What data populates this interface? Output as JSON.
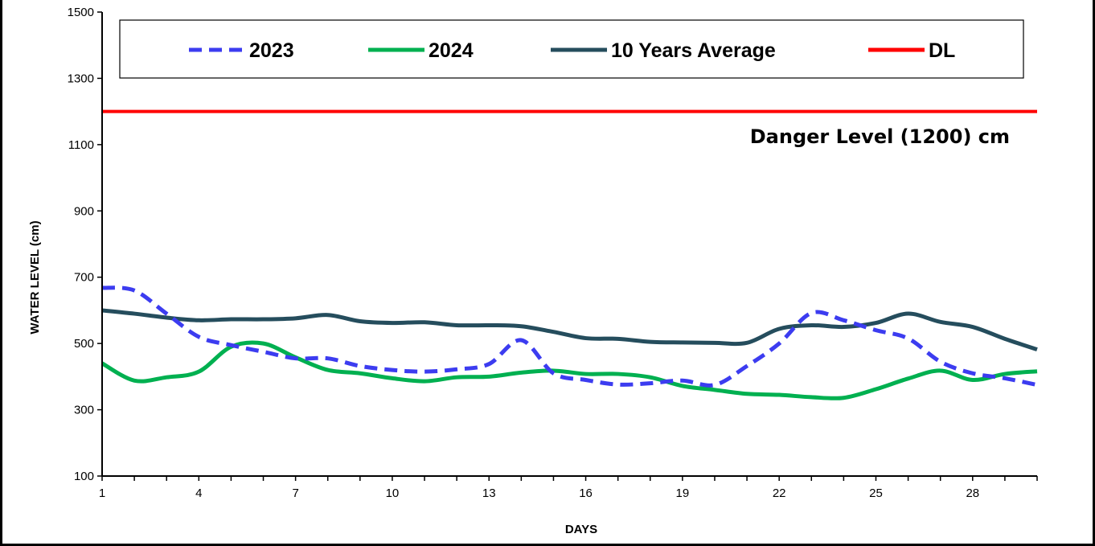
{
  "chart_data": {
    "type": "line",
    "xlabel": "DAYS",
    "ylabel": "WATER LEVEL (cm)",
    "xlim": [
      1,
      30
    ],
    "ylim": [
      100,
      1500
    ],
    "x_ticks": [
      1,
      4,
      7,
      10,
      13,
      16,
      19,
      22,
      25,
      28
    ],
    "y_ticks": [
      100,
      300,
      500,
      700,
      900,
      1100,
      1300,
      1500
    ],
    "grid": false,
    "legend_position": "top",
    "x": [
      1,
      2,
      3,
      4,
      5,
      6,
      7,
      8,
      9,
      10,
      11,
      12,
      13,
      14,
      15,
      16,
      17,
      18,
      19,
      20,
      21,
      22,
      23,
      24,
      25,
      26,
      27,
      28,
      29,
      30
    ],
    "series": [
      {
        "name": "2023",
        "color": "#3c3cf0",
        "style": "dashed",
        "values": [
          668,
          660,
          590,
          520,
          495,
          475,
          455,
          455,
          432,
          420,
          415,
          422,
          438,
          510,
          410,
          390,
          376,
          380,
          388,
          375,
          432,
          500,
          592,
          570,
          540,
          515,
          445,
          410,
          395,
          375
        ]
      },
      {
        "name": "2024",
        "color": "#00b050",
        "style": "solid",
        "values": [
          440,
          388,
          398,
          415,
          490,
          500,
          458,
          420,
          410,
          395,
          386,
          398,
          400,
          412,
          418,
          408,
          408,
          398,
          372,
          360,
          348,
          345,
          338,
          336,
          362,
          394,
          418,
          390,
          408,
          416
        ]
      },
      {
        "name": "10 Years Average",
        "color": "#254d5d",
        "style": "solid",
        "values": [
          600,
          590,
          578,
          570,
          573,
          573,
          576,
          586,
          567,
          562,
          564,
          555,
          555,
          552,
          535,
          516,
          514,
          505,
          503,
          502,
          502,
          544,
          555,
          550,
          562,
          590,
          565,
          550,
          514,
          482
        ]
      },
      {
        "name": "DL",
        "color": "#ff0000",
        "style": "solid",
        "values": [
          1200,
          1200,
          1200,
          1200,
          1200,
          1200,
          1200,
          1200,
          1200,
          1200,
          1200,
          1200,
          1200,
          1200,
          1200,
          1200,
          1200,
          1200,
          1200,
          1200,
          1200,
          1200,
          1200,
          1200,
          1200,
          1200,
          1200,
          1200,
          1200,
          1200
        ]
      }
    ],
    "annotations": [
      {
        "text": "Danger Level (1200) cm",
        "x": 29,
        "y": 1100
      }
    ]
  }
}
